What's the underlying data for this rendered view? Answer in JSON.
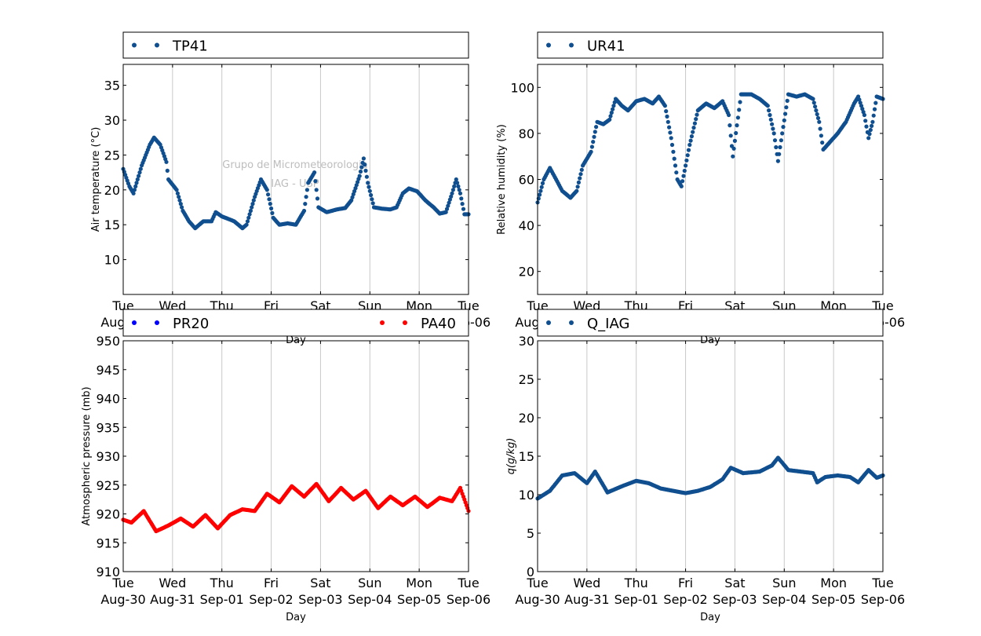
{
  "watermark": {
    "line1": "Grupo de Micrometeorologia",
    "line2": "IAG - USP"
  },
  "colors": {
    "blue": "#104f8f",
    "pure_blue": "#0000ff",
    "red": "#ff0000",
    "grid": "#c8c8c8"
  },
  "x_ticks": {
    "days": [
      "Tue",
      "Wed",
      "Thu",
      "Fri",
      "Sat",
      "Sun",
      "Mon",
      "Tue"
    ],
    "dates": [
      "Aug-30",
      "Aug-31",
      "Sep-01",
      "Sep-02",
      "Sep-03",
      "Sep-04",
      "Sep-05",
      "Sep-06"
    ]
  },
  "chart_data": [
    {
      "type": "scatter",
      "xlabel": "Day",
      "ylabel": "Air temperature (°C)",
      "ylim": [
        5,
        38
      ],
      "yticks": [
        10,
        15,
        20,
        25,
        30,
        35
      ],
      "xlim": [
        "2016-08-30",
        "2016-09-06"
      ],
      "grid": "x",
      "legend": "top",
      "series": [
        {
          "name": "TP41",
          "color": "#104f8f",
          "points": [
            [
              "2016-08-30 00:00",
              23
            ],
            [
              "2016-08-30 03:00",
              20.5
            ],
            [
              "2016-08-30 05:00",
              19.5
            ],
            [
              "2016-08-30 09:00",
              23.5
            ],
            [
              "2016-08-30 13:00",
              26.5
            ],
            [
              "2016-08-30 15:00",
              27.5
            ],
            [
              "2016-08-30 18:00",
              26.5
            ],
            [
              "2016-08-30 21:00",
              24
            ],
            [
              "2016-08-30 22:00",
              21.5
            ],
            [
              "2016-08-31 02:00",
              20
            ],
            [
              "2016-08-31 05:00",
              17
            ],
            [
              "2016-08-31 08:00",
              15.5
            ],
            [
              "2016-08-31 11:00",
              14.5
            ],
            [
              "2016-08-31 15:00",
              15.5
            ],
            [
              "2016-08-31 19:00",
              15.5
            ],
            [
              "2016-08-31 21:00",
              16.8
            ],
            [
              "2016-09-01 00:00",
              16.2
            ],
            [
              "2016-09-01 06:00",
              15.5
            ],
            [
              "2016-09-01 10:00",
              14.5
            ],
            [
              "2016-09-01 12:00",
              15
            ],
            [
              "2016-09-01 16:00",
              19
            ],
            [
              "2016-09-01 19:00",
              21.5
            ],
            [
              "2016-09-01 22:00",
              20
            ],
            [
              "2016-09-02 01:00",
              16
            ],
            [
              "2016-09-02 04:00",
              15
            ],
            [
              "2016-09-02 08:00",
              15.2
            ],
            [
              "2016-09-02 12:00",
              15
            ],
            [
              "2016-09-02 16:00",
              17
            ],
            [
              "2016-09-02 18:00",
              21
            ],
            [
              "2016-09-02 21:00",
              22.5
            ],
            [
              "2016-09-02 23:00",
              17.5
            ],
            [
              "2016-09-03 03:00",
              16.8
            ],
            [
              "2016-09-03 08:00",
              17.2
            ],
            [
              "2016-09-03 12:00",
              17.4
            ],
            [
              "2016-09-03 15:00",
              18.5
            ],
            [
              "2016-09-03 19:00",
              22
            ],
            [
              "2016-09-03 21:00",
              24.5
            ],
            [
              "2016-09-03 23:00",
              21
            ],
            [
              "2016-09-04 02:00",
              17.5
            ],
            [
              "2016-09-04 06:00",
              17.3
            ],
            [
              "2016-09-04 10:00",
              17.2
            ],
            [
              "2016-09-04 13:00",
              17.5
            ],
            [
              "2016-09-04 16:00",
              19.5
            ],
            [
              "2016-09-04 19:00",
              20.2
            ],
            [
              "2016-09-04 23:00",
              19.8
            ],
            [
              "2016-09-05 03:00",
              18.5
            ],
            [
              "2016-09-05 07:00",
              17.5
            ],
            [
              "2016-09-05 10:00",
              16.6
            ],
            [
              "2016-09-05 13:00",
              16.8
            ],
            [
              "2016-09-05 16:00",
              19.5
            ],
            [
              "2016-09-05 18:00",
              21.5
            ],
            [
              "2016-09-05 20:00",
              19.5
            ],
            [
              "2016-09-05 22:00",
              16.5
            ],
            [
              "2016-09-06 00:00",
              16.5
            ]
          ]
        }
      ]
    },
    {
      "type": "scatter",
      "xlabel": "Day",
      "ylabel": "Relative humidity (%)",
      "ylim": [
        10,
        110
      ],
      "yticks": [
        20,
        40,
        60,
        80,
        100
      ],
      "xlim": [
        "2016-08-30",
        "2016-09-06"
      ],
      "grid": "x",
      "legend": "top",
      "series": [
        {
          "name": "UR41",
          "color": "#104f8f",
          "points": [
            [
              "2016-08-30 00:00",
              50
            ],
            [
              "2016-08-30 03:00",
              60
            ],
            [
              "2016-08-30 06:00",
              65
            ],
            [
              "2016-08-30 09:00",
              60
            ],
            [
              "2016-08-30 12:00",
              55
            ],
            [
              "2016-08-30 16:00",
              52
            ],
            [
              "2016-08-30 19:00",
              55
            ],
            [
              "2016-08-30 22:00",
              66
            ],
            [
              "2016-08-31 02:00",
              72
            ],
            [
              "2016-08-31 05:00",
              85
            ],
            [
              "2016-08-31 08:00",
              84
            ],
            [
              "2016-08-31 11:00",
              86
            ],
            [
              "2016-08-31 14:00",
              95
            ],
            [
              "2016-08-31 17:00",
              92
            ],
            [
              "2016-08-31 20:00",
              90
            ],
            [
              "2016-09-01 00:00",
              94
            ],
            [
              "2016-09-01 04:00",
              95
            ],
            [
              "2016-09-01 08:00",
              93
            ],
            [
              "2016-09-01 11:00",
              96
            ],
            [
              "2016-09-01 14:00",
              92
            ],
            [
              "2016-09-01 17:00",
              78
            ],
            [
              "2016-09-01 20:00",
              60
            ],
            [
              "2016-09-01 22:00",
              57
            ],
            [
              "2016-09-02 02:00",
              75
            ],
            [
              "2016-09-02 06:00",
              90
            ],
            [
              "2016-09-02 10:00",
              93
            ],
            [
              "2016-09-02 14:00",
              91
            ],
            [
              "2016-09-02 18:00",
              94
            ],
            [
              "2016-09-02 21:00",
              88
            ],
            [
              "2016-09-02 23:00",
              70
            ],
            [
              "2016-09-03 03:00",
              97
            ],
            [
              "2016-09-03 08:00",
              97
            ],
            [
              "2016-09-03 12:00",
              95
            ],
            [
              "2016-09-03 16:00",
              92
            ],
            [
              "2016-09-03 19:00",
              80
            ],
            [
              "2016-09-03 21:00",
              68
            ],
            [
              "2016-09-03 23:00",
              80
            ],
            [
              "2016-09-04 02:00",
              97
            ],
            [
              "2016-09-04 06:00",
              96
            ],
            [
              "2016-09-04 10:00",
              97
            ],
            [
              "2016-09-04 14:00",
              95
            ],
            [
              "2016-09-04 17:00",
              85
            ],
            [
              "2016-09-04 19:00",
              73
            ],
            [
              "2016-09-04 22:00",
              76
            ],
            [
              "2016-09-05 02:00",
              80
            ],
            [
              "2016-09-05 06:00",
              85
            ],
            [
              "2016-09-05 10:00",
              93
            ],
            [
              "2016-09-05 12:00",
              96
            ],
            [
              "2016-09-05 15:00",
              88
            ],
            [
              "2016-09-05 17:00",
              78
            ],
            [
              "2016-09-05 19:00",
              85
            ],
            [
              "2016-09-05 21:00",
              96
            ],
            [
              "2016-09-06 00:00",
              95
            ]
          ]
        }
      ]
    },
    {
      "type": "scatter",
      "xlabel": "Day",
      "ylabel": "Atmospheric pressure (mb)",
      "ylim": [
        910,
        950
      ],
      "yticks": [
        910,
        915,
        920,
        925,
        930,
        935,
        940,
        945,
        950
      ],
      "xlim": [
        "2016-08-30",
        "2016-09-06"
      ],
      "grid": "x",
      "legend": "top",
      "series": [
        {
          "name": "PR20",
          "color": "#0000ff",
          "points": []
        },
        {
          "name": "PA40",
          "color": "#ff0000",
          "points": [
            [
              "2016-08-30 00:00",
              919
            ],
            [
              "2016-08-30 04:00",
              918.5
            ],
            [
              "2016-08-30 10:00",
              920.5
            ],
            [
              "2016-08-30 16:00",
              917
            ],
            [
              "2016-08-30 22:00",
              918
            ],
            [
              "2016-08-31 04:00",
              919.2
            ],
            [
              "2016-08-31 10:00",
              917.8
            ],
            [
              "2016-08-31 16:00",
              919.8
            ],
            [
              "2016-08-31 22:00",
              917.5
            ],
            [
              "2016-09-01 04:00",
              919.8
            ],
            [
              "2016-09-01 10:00",
              920.8
            ],
            [
              "2016-09-01 16:00",
              920.5
            ],
            [
              "2016-09-01 22:00",
              923.5
            ],
            [
              "2016-09-02 04:00",
              922
            ],
            [
              "2016-09-02 10:00",
              924.8
            ],
            [
              "2016-09-02 16:00",
              923
            ],
            [
              "2016-09-02 22:00",
              925.2
            ],
            [
              "2016-09-03 04:00",
              922.2
            ],
            [
              "2016-09-03 10:00",
              924.5
            ],
            [
              "2016-09-03 16:00",
              922.5
            ],
            [
              "2016-09-03 22:00",
              924
            ],
            [
              "2016-09-04 04:00",
              921
            ],
            [
              "2016-09-04 10:00",
              923
            ],
            [
              "2016-09-04 16:00",
              921.5
            ],
            [
              "2016-09-04 22:00",
              923
            ],
            [
              "2016-09-05 04:00",
              921.2
            ],
            [
              "2016-09-05 10:00",
              922.8
            ],
            [
              "2016-09-05 16:00",
              922.2
            ],
            [
              "2016-09-05 20:00",
              924.5
            ],
            [
              "2016-09-06 00:00",
              920.5
            ]
          ]
        }
      ]
    },
    {
      "type": "scatter",
      "xlabel": "Day",
      "ylabel": "q(g/kg)",
      "ylim": [
        0,
        30
      ],
      "yticks": [
        0,
        5,
        10,
        15,
        20,
        25,
        30
      ],
      "xlim": [
        "2016-08-30",
        "2016-09-06"
      ],
      "grid": "x",
      "legend": "top",
      "series": [
        {
          "name": "Q_IAG",
          "color": "#104f8f",
          "points": [
            [
              "2016-08-30 00:00",
              9.5
            ],
            [
              "2016-08-30 06:00",
              10.5
            ],
            [
              "2016-08-30 12:00",
              12.5
            ],
            [
              "2016-08-30 18:00",
              12.8
            ],
            [
              "2016-08-31 00:00",
              11.5
            ],
            [
              "2016-08-31 04:00",
              13
            ],
            [
              "2016-08-31 10:00",
              10.3
            ],
            [
              "2016-08-31 18:00",
              11.2
            ],
            [
              "2016-09-01 00:00",
              11.8
            ],
            [
              "2016-09-01 06:00",
              11.5
            ],
            [
              "2016-09-01 12:00",
              10.8
            ],
            [
              "2016-09-01 18:00",
              10.5
            ],
            [
              "2016-09-02 00:00",
              10.2
            ],
            [
              "2016-09-02 06:00",
              10.5
            ],
            [
              "2016-09-02 12:00",
              11
            ],
            [
              "2016-09-02 18:00",
              12
            ],
            [
              "2016-09-02 22:00",
              13.5
            ],
            [
              "2016-09-03 04:00",
              12.8
            ],
            [
              "2016-09-03 12:00",
              13
            ],
            [
              "2016-09-03 18:00",
              13.8
            ],
            [
              "2016-09-03 21:00",
              14.8
            ],
            [
              "2016-09-04 02:00",
              13.2
            ],
            [
              "2016-09-04 08:00",
              13
            ],
            [
              "2016-09-04 14:00",
              12.8
            ],
            [
              "2016-09-04 16:00",
              11.6
            ],
            [
              "2016-09-04 20:00",
              12.3
            ],
            [
              "2016-09-05 02:00",
              12.5
            ],
            [
              "2016-09-05 08:00",
              12.3
            ],
            [
              "2016-09-05 12:00",
              11.6
            ],
            [
              "2016-09-05 17:00",
              13.2
            ],
            [
              "2016-09-05 21:00",
              12.2
            ],
            [
              "2016-09-06 00:00",
              12.5
            ]
          ]
        }
      ]
    }
  ]
}
